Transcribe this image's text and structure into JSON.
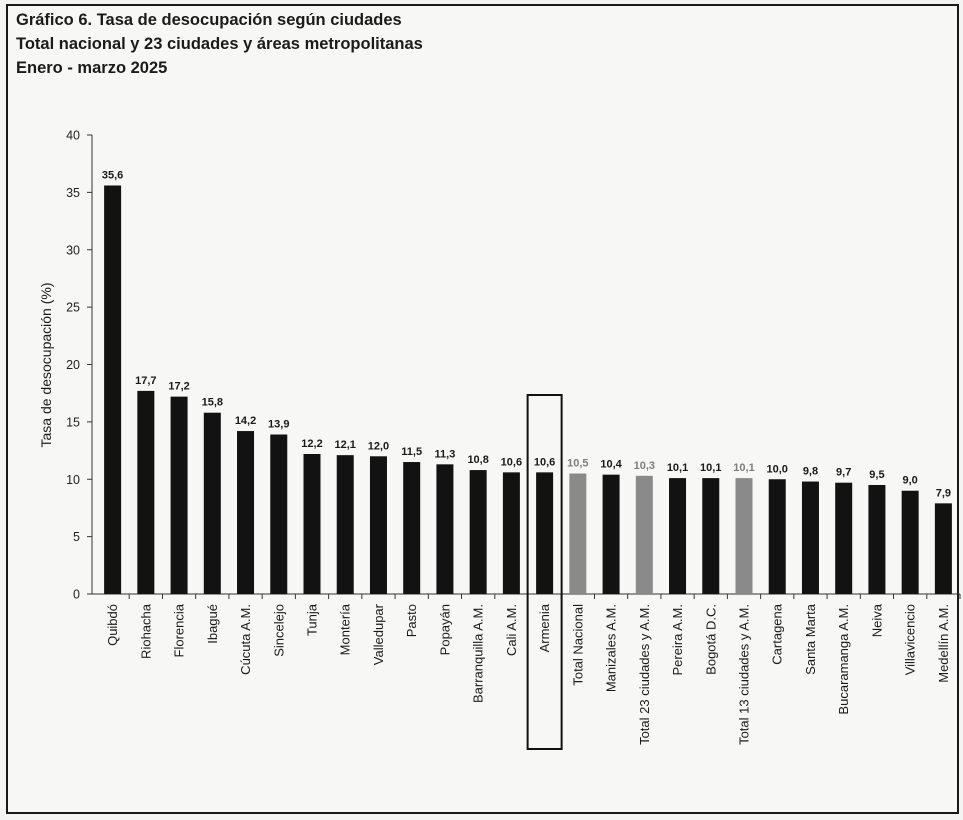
{
  "chart_data": {
    "type": "bar",
    "title": "Gráfico 6. Tasa de desocupación según ciudades",
    "subtitle": "Total nacional y 23 ciudades y áreas metropolitanas",
    "period": "Enero - marzo 2025",
    "ylabel": "Tasa de desocupación (%)",
    "xlabel": "",
    "ylim": [
      0,
      40
    ],
    "yticks": [
      0,
      5,
      10,
      15,
      20,
      25,
      30,
      35,
      40
    ],
    "grid": false,
    "legend": "none",
    "highlighted_category": "Armenia",
    "colors": {
      "city": "#121212",
      "aggregate": "#8a8a8a",
      "highlight_box": "#111111"
    },
    "categories": [
      "Quibdó",
      "Riohacha",
      "Florencia",
      "Ibagué",
      "Cúcuta A.M.",
      "Sincelejo",
      "Tunja",
      "Montería",
      "Valledupar",
      "Pasto",
      "Popayán",
      "Barranquilla A.M.",
      "Cali A.M.",
      "Armenia",
      "Total Nacional",
      "Manizales A.M.",
      "Total 23 ciudades y A.M.",
      "Pereira A.M.",
      "Bogotá D.C.",
      "Total 13 ciudades y A.M.",
      "Cartagena",
      "Santa Marta",
      "Bucaramanga A.M.",
      "Neiva",
      "Villavicencio",
      "Medellín A.M."
    ],
    "values": [
      35.6,
      17.7,
      17.2,
      15.8,
      14.2,
      13.9,
      12.2,
      12.1,
      12.0,
      11.5,
      11.3,
      10.8,
      10.6,
      10.6,
      10.5,
      10.4,
      10.3,
      10.1,
      10.1,
      10.1,
      10.0,
      9.8,
      9.7,
      9.5,
      9.0,
      7.9
    ],
    "value_labels": [
      "35,6",
      "17,7",
      "17,2",
      "15,8",
      "14,2",
      "13,9",
      "12,2",
      "12,1",
      "12,0",
      "11,5",
      "11,3",
      "10,8",
      "10,6",
      "10,6",
      "10,5",
      "10,4",
      "10,3",
      "10,1",
      "10,1",
      "10,1",
      "10,0",
      "9,8",
      "9,7",
      "9,5",
      "9,0",
      "7,9"
    ],
    "aggregate": [
      false,
      false,
      false,
      false,
      false,
      false,
      false,
      false,
      false,
      false,
      false,
      false,
      false,
      false,
      true,
      false,
      true,
      false,
      false,
      true,
      false,
      false,
      false,
      false,
      false,
      false
    ]
  }
}
